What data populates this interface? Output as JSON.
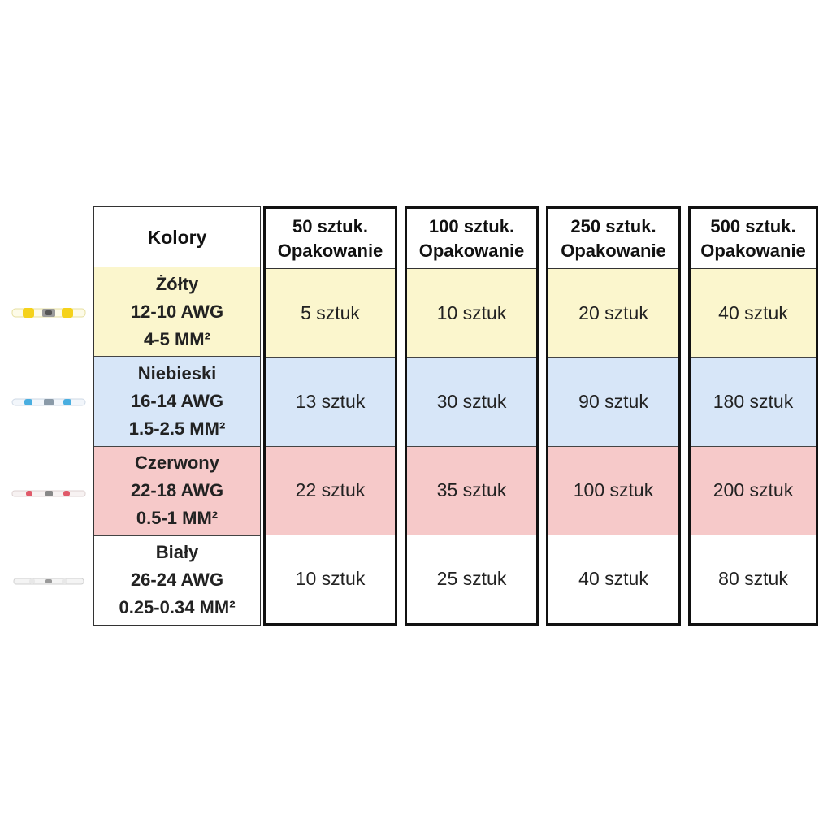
{
  "colors": {
    "yellow": "#fbf6cd",
    "blue": "#d7e6f8",
    "red": "#f6c9c9",
    "white": "#ffffff",
    "border": "#111111"
  },
  "table": {
    "header_label": "Kolory",
    "rows": [
      {
        "name": "Żółty",
        "awg": "12-10 AWG",
        "mm": "4-5 MM²",
        "connector_icon": "yellow-solder-connector-icon"
      },
      {
        "name": "Niebieski",
        "awg": "16-14 AWG",
        "mm": "1.5-2.5 MM²",
        "connector_icon": "blue-solder-connector-icon"
      },
      {
        "name": "Czerwony",
        "awg": "22-18 AWG",
        "mm": "0.5-1 MM²",
        "connector_icon": "red-solder-connector-icon"
      },
      {
        "name": "Biały",
        "awg": "26-24 AWG",
        "mm": "0.25-0.34 MM²",
        "connector_icon": "white-solder-connector-icon"
      }
    ],
    "packs": [
      {
        "line1": "50 sztuk.",
        "line2": "Opakowanie",
        "values": [
          "5 sztuk",
          "13 sztuk",
          "22 sztuk",
          "10 sztuk"
        ]
      },
      {
        "line1": "100 sztuk.",
        "line2": "Opakowanie",
        "values": [
          "10 sztuk",
          "30 sztuk",
          "35 sztuk",
          "25 sztuk"
        ]
      },
      {
        "line1": "250 sztuk.",
        "line2": "Opakowanie",
        "values": [
          "20 sztuk",
          "90 sztuk",
          "100 sztuk",
          "40 sztuk"
        ]
      },
      {
        "line1": "500 sztuk.",
        "line2": "Opakowanie",
        "values": [
          "40 sztuk",
          "180 sztuk",
          "200 sztuk",
          "80 sztuk"
        ]
      }
    ]
  }
}
